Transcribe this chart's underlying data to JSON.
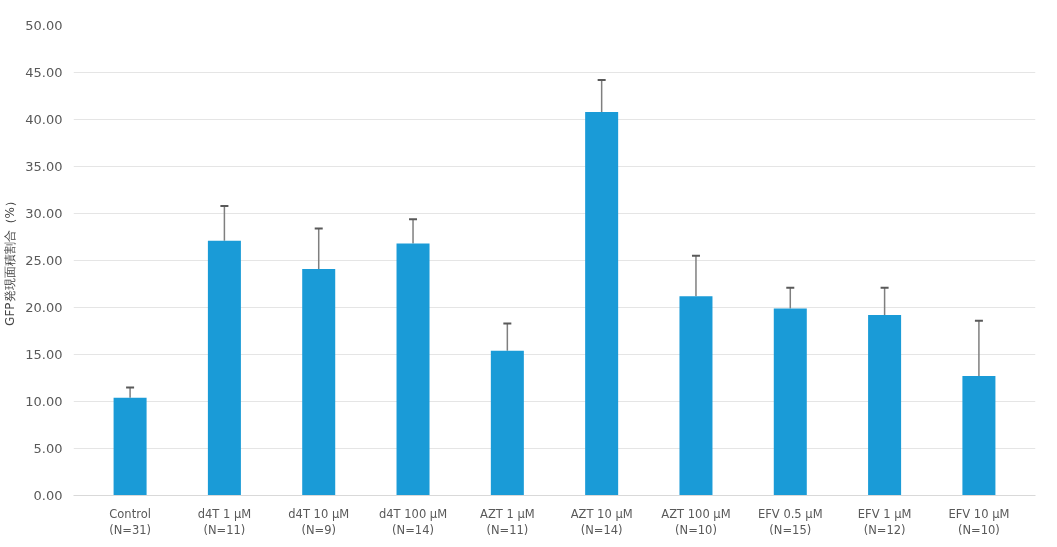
{
  "chart_data": {
    "type": "bar",
    "ylabel": "GFP発現面積割合（%）",
    "categories": [
      "Control\n(N=31)",
      "d4T 1 μM\n(N=11)",
      "d4T 10 μM\n(N=9)",
      "d4T 100 μM\n(N=14)",
      "AZT 1 μM\n(N=11)",
      "AZT 10 μM\n(N=14)",
      "AZT 100 μM\n(N=10)",
      "EFV 0.5 μM\n(N=15)",
      "EFV 1 μM\n(N=12)",
      "EFV 10 μM\n(N=10)"
    ],
    "values": [
      10.4,
      27.1,
      24.1,
      26.8,
      15.4,
      40.8,
      21.2,
      19.9,
      19.2,
      12.7
    ],
    "errors": [
      [
        10.4,
        11.5
      ],
      [
        27.1,
        30.8
      ],
      [
        24.1,
        28.4
      ],
      [
        26.8,
        29.4
      ],
      [
        15.4,
        18.3
      ],
      [
        40.8,
        44.2
      ],
      [
        21.2,
        25.5
      ],
      [
        19.9,
        22.1
      ],
      [
        19.2,
        22.1
      ],
      [
        12.7,
        18.6
      ]
    ],
    "color": "#1a9bd7",
    "ylim": [
      0,
      50
    ],
    "yticks": [
      {
        "value": 0,
        "label": "0.00"
      },
      {
        "value": 5,
        "label": "5.00"
      },
      {
        "value": 10,
        "label": "10.00"
      },
      {
        "value": 15,
        "label": "15.00"
      },
      {
        "value": 20,
        "label": "20.00"
      },
      {
        "value": 25,
        "label": "25.00"
      },
      {
        "value": 30,
        "label": "30.00"
      },
      {
        "value": 35,
        "label": "35.00"
      },
      {
        "value": 40,
        "label": "40.00"
      },
      {
        "value": 45,
        "label": "45.00"
      },
      {
        "value": 50,
        "label": "50.00"
      }
    ],
    "grid": "y"
  }
}
